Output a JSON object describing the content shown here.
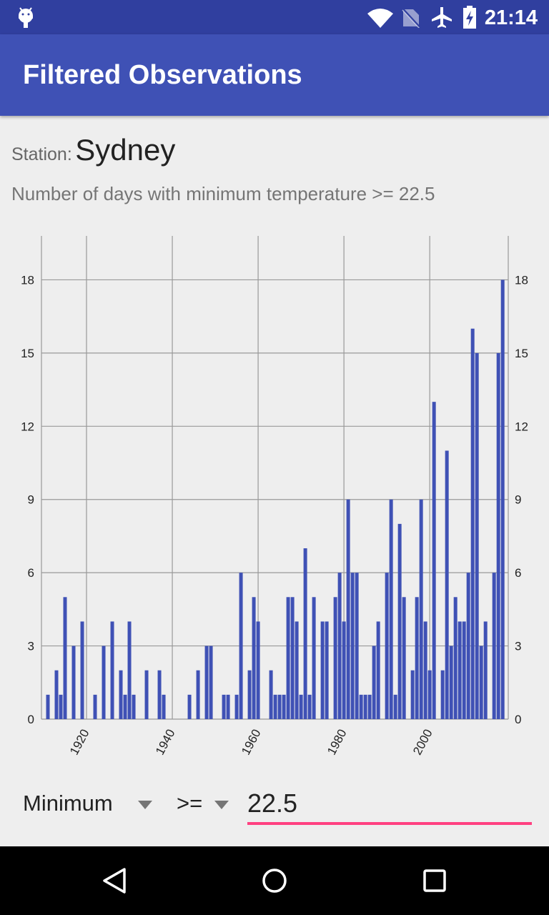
{
  "status_bar": {
    "time": "21:14",
    "icons": [
      "android-debug-icon",
      "wifi-icon",
      "no-sim-icon",
      "airplane-mode-icon",
      "battery-charging-icon"
    ]
  },
  "app_bar": {
    "title": "Filtered Observations"
  },
  "station": {
    "label": "Station:",
    "name": "Sydney"
  },
  "subtitle": "Number of days with minimum temperature >= 22.5",
  "controls": {
    "measure_select": "Minimum",
    "operator_select": ">=",
    "threshold_value": "22.5",
    "accent_color": "#FF4081"
  },
  "nav_bar": {
    "icons": [
      "back-icon",
      "home-icon",
      "recents-icon"
    ]
  },
  "colors": {
    "status_bar": "#303F9F",
    "app_bar": "#3F51B5",
    "bar": "#3F51B5"
  },
  "chart_data": {
    "type": "bar",
    "title": "",
    "xlabel": "",
    "ylabel": "",
    "x_ticks": [
      "1920",
      "1940",
      "1960",
      "1980",
      "2000"
    ],
    "y_ticks": [
      0,
      3,
      6,
      9,
      12,
      15,
      18
    ],
    "y_axis_sides": "left-and-right",
    "grid": true,
    "ylim": [
      0,
      19.8
    ],
    "xlim": [
      1909.5,
      2018.3
    ],
    "years": [
      1911,
      1912,
      1913,
      1914,
      1915,
      1916,
      1917,
      1918,
      1919,
      1920,
      1921,
      1922,
      1923,
      1924,
      1925,
      1926,
      1927,
      1928,
      1929,
      1930,
      1931,
      1932,
      1933,
      1934,
      1935,
      1936,
      1937,
      1938,
      1939,
      1940,
      1941,
      1942,
      1943,
      1944,
      1945,
      1946,
      1947,
      1948,
      1949,
      1950,
      1951,
      1952,
      1953,
      1954,
      1955,
      1956,
      1957,
      1958,
      1959,
      1960,
      1961,
      1962,
      1963,
      1964,
      1965,
      1966,
      1967,
      1968,
      1969,
      1970,
      1971,
      1972,
      1973,
      1974,
      1975,
      1976,
      1977,
      1978,
      1979,
      1980,
      1981,
      1982,
      1983,
      1984,
      1985,
      1986,
      1987,
      1988,
      1989,
      1990,
      1991,
      1992,
      1993,
      1994,
      1995,
      1996,
      1997,
      1998,
      1999,
      2000,
      2001,
      2002,
      2003,
      2004,
      2005,
      2006,
      2007,
      2008,
      2009,
      2010,
      2011,
      2012,
      2013,
      2014,
      2015,
      2016,
      2017
    ],
    "values": [
      1,
      0,
      2,
      1,
      5,
      0,
      3,
      0,
      4,
      0,
      0,
      1,
      0,
      3,
      0,
      4,
      0,
      2,
      1,
      4,
      1,
      0,
      0,
      2,
      0,
      0,
      2,
      1,
      0,
      0,
      0,
      0,
      0,
      1,
      0,
      2,
      0,
      3,
      3,
      0,
      0,
      1,
      1,
      0,
      1,
      6,
      0,
      2,
      5,
      4,
      0,
      0,
      2,
      1,
      1,
      1,
      5,
      5,
      4,
      1,
      7,
      1,
      5,
      0,
      4,
      4,
      0,
      5,
      6,
      4,
      9,
      6,
      6,
      1,
      1,
      1,
      3,
      4,
      0,
      6,
      9,
      1,
      8,
      5,
      0,
      2,
      5,
      9,
      4,
      2,
      13,
      0,
      2,
      11,
      3,
      5,
      4,
      4,
      6,
      16,
      15,
      3,
      4,
      0,
      6,
      15,
      18
    ]
  }
}
